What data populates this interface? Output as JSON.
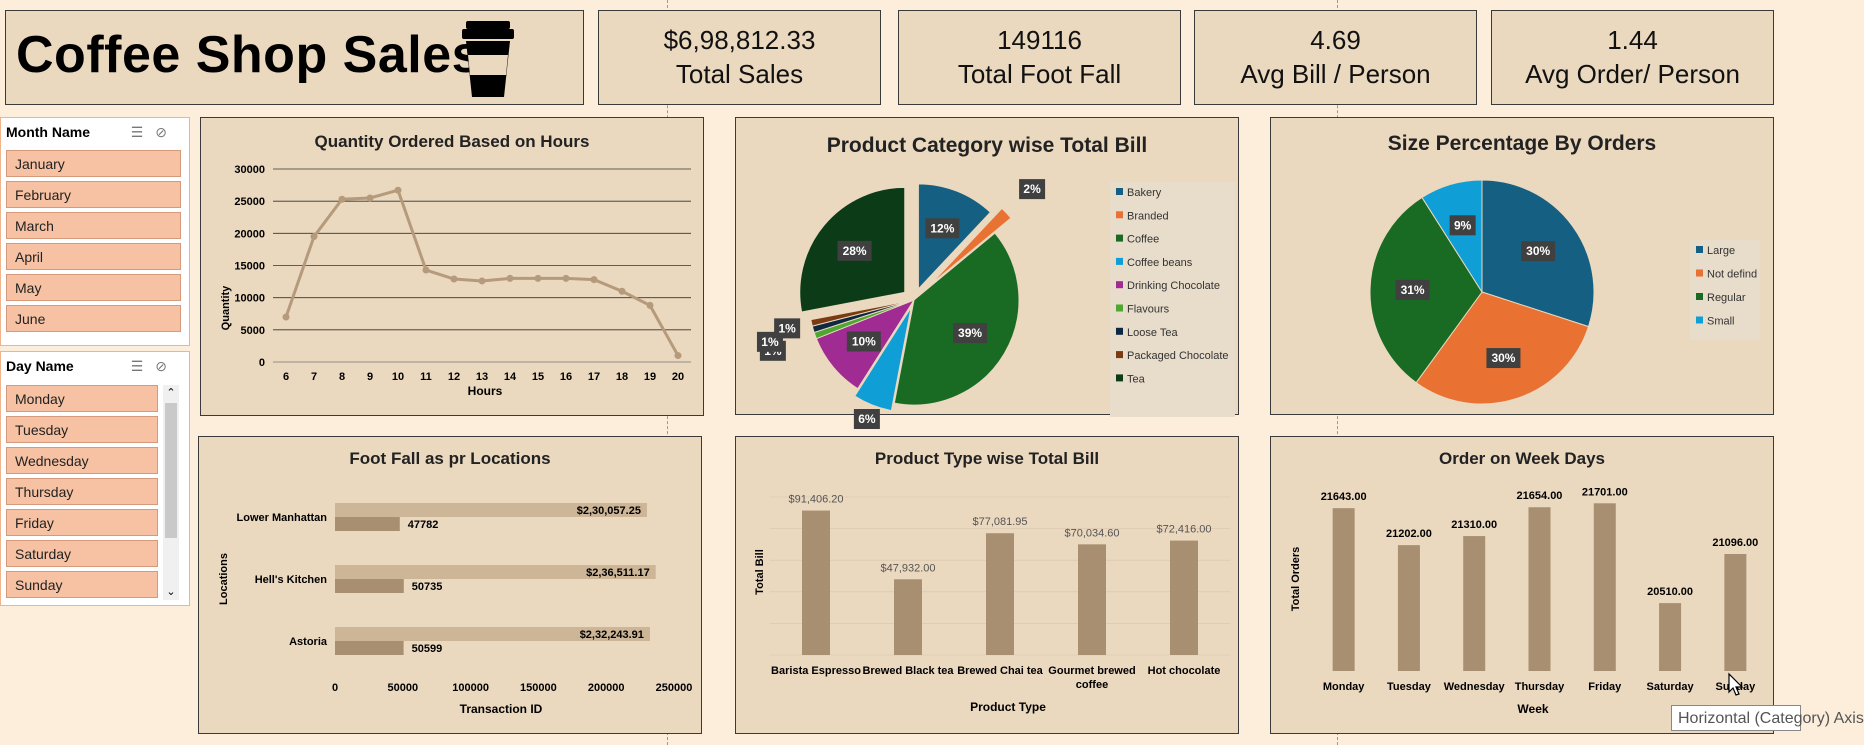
{
  "header": {
    "title": "Coffee Shop Sales",
    "icon": "coffee-cup-icon"
  },
  "kpis": [
    {
      "value": "$6,98,812.33",
      "label": "Total Sales"
    },
    {
      "value": "149116",
      "label": "Total Foot Fall"
    },
    {
      "value": "4.69",
      "label": "Avg Bill / Person"
    },
    {
      "value": "1.44",
      "label": "Avg Order/ Person"
    }
  ],
  "month_slicer": {
    "header": "Month Name",
    "items": [
      "January",
      "February",
      "March",
      "April",
      "May",
      "June"
    ]
  },
  "day_slicer": {
    "header": "Day Name",
    "items": [
      "Monday",
      "Tuesday",
      "Wednesday",
      "Thursday",
      "Friday",
      "Saturday",
      "Sunday"
    ]
  },
  "tooltip": "Horizontal (Category) Axis",
  "colors": {
    "bar": "#a88f72",
    "bar_light": "#cdb597",
    "line": "#b59a7c",
    "panel": "#ead8bf"
  },
  "chart_data": [
    {
      "type": "line",
      "title": "Quantity Ordered Based on Hours",
      "xlabel": "Hours",
      "ylabel": "Quantity",
      "x": [
        6,
        7,
        8,
        9,
        10,
        11,
        12,
        13,
        14,
        15,
        16,
        17,
        18,
        19,
        20
      ],
      "y": [
        7000,
        19500,
        25300,
        25500,
        26700,
        14300,
        12900,
        12600,
        13000,
        13000,
        13000,
        12800,
        11000,
        8800,
        1000
      ],
      "yticks": [
        0,
        5000,
        10000,
        15000,
        20000,
        25000,
        30000
      ],
      "ylim": [
        0,
        30000
      ]
    },
    {
      "type": "pie",
      "title": "Product Category wise Total Bill",
      "legend": "right",
      "slices": [
        {
          "name": "Bakery",
          "value": 12,
          "label": "12%",
          "color": "#156082"
        },
        {
          "name": "Branded",
          "value": 2,
          "label": "2%",
          "color": "#e97132"
        },
        {
          "name": "Coffee",
          "value": 39,
          "label": "39%",
          "color": "#196b24"
        },
        {
          "name": "Coffee beans",
          "value": 6,
          "label": "6%",
          "color": "#0f9ed5"
        },
        {
          "name": "Drinking Chocolate",
          "value": 10,
          "label": "10%",
          "color": "#a02b93"
        },
        {
          "name": "Flavours",
          "value": 1,
          "label": "1%",
          "color": "#4ea72e"
        },
        {
          "name": "Loose Tea",
          "value": 1,
          "label": "1%",
          "color": "#0e2841"
        },
        {
          "name": "Packaged Chocolate",
          "value": 1,
          "label": "1%",
          "color": "#7a3a12"
        },
        {
          "name": "Tea",
          "value": 28,
          "label": "28%",
          "color": "#0b3c17"
        }
      ]
    },
    {
      "type": "pie",
      "title": "Size Percentage By Orders",
      "legend": "right",
      "slices": [
        {
          "name": "Large",
          "value": 30,
          "label": "30%",
          "color": "#156082"
        },
        {
          "name": "Not defind",
          "value": 30,
          "label": "30%",
          "color": "#e97132"
        },
        {
          "name": "Regular",
          "value": 31,
          "label": "31%",
          "color": "#196b24"
        },
        {
          "name": "Small",
          "value": 9,
          "label": "9%",
          "color": "#0f9ed5"
        }
      ]
    },
    {
      "type": "bar",
      "orientation": "horizontal",
      "title": "Foot Fall as pr Locations",
      "xlabel": "Transaction ID",
      "ylabel": "Locations",
      "categories": [
        "Lower Manhattan",
        "Hell's Kitchen",
        "Astoria"
      ],
      "series": [
        {
          "values": [
            230057.25,
            236511.17,
            232243.91
          ],
          "labels": [
            "$2,30,057.25",
            "$2,36,511.17",
            "$2,32,243.91"
          ]
        },
        {
          "values": [
            47782,
            50735,
            50599
          ],
          "labels": [
            "47782",
            "50735",
            "50599"
          ]
        }
      ],
      "xticks": [
        0,
        50000,
        100000,
        150000,
        200000,
        250000
      ],
      "xlim": [
        0,
        250000
      ]
    },
    {
      "type": "bar",
      "title": "Product Type wise Total Bill",
      "xlabel": "Product Type",
      "ylabel": "Total Bill",
      "categories": [
        "Barista Espresso",
        "Brewed Black tea",
        "Brewed Chai tea",
        "Gourmet brewed coffee",
        "Hot chocolate"
      ],
      "values": [
        91406.2,
        47932.0,
        77081.95,
        70034.6,
        72416.0
      ],
      "labels": [
        "$91,406.20",
        "$47,932.00",
        "$77,081.95",
        "$70,034.60",
        "$72,416.00"
      ],
      "ylim": [
        0,
        100000
      ]
    },
    {
      "type": "bar",
      "title": "Order on Week Days",
      "xlabel": "Week",
      "ylabel": "Total Orders",
      "categories": [
        "Monday",
        "Tuesday",
        "Wednesday",
        "Thursday",
        "Friday",
        "Saturday",
        "Sunday"
      ],
      "values": [
        21643,
        21202,
        21310,
        21654,
        21701,
        20510,
        21096
      ],
      "labels": [
        "21643.00",
        "21202.00",
        "21310.00",
        "21654.00",
        "21701.00",
        "20510.00",
        "21096.00"
      ],
      "ylim": [
        19700,
        21800
      ]
    }
  ]
}
